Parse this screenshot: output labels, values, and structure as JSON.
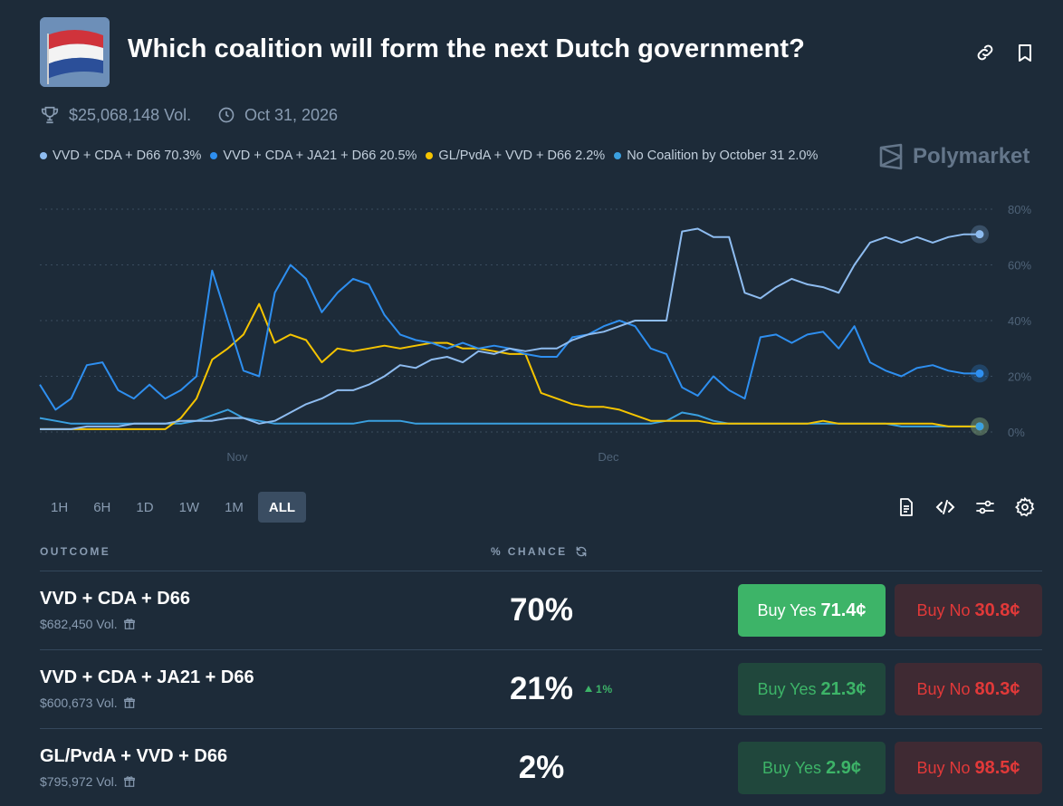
{
  "header": {
    "title": "Which coalition will form the next Dutch government?",
    "volume": "$25,068,148 Vol.",
    "date": "Oct 31, 2026",
    "brand": "Polymarket",
    "icons": [
      "trophy-icon",
      "clock-icon",
      "link-icon",
      "bookmark-icon"
    ]
  },
  "legend": [
    {
      "label": "VVD + CDA + D66 70.3%",
      "color": "#8ebcf0"
    },
    {
      "label": "VVD + CDA + JA21 + D66 20.5%",
      "color": "#2e8ff0"
    },
    {
      "label": "GL/PvdA + VVD + D66 2.2%",
      "color": "#f5c400"
    },
    {
      "label": "No Coalition by October 31 2.0%",
      "color": "#3aa0e0"
    }
  ],
  "ranges": [
    {
      "label": "1H",
      "active": false
    },
    {
      "label": "6H",
      "active": false
    },
    {
      "label": "1D",
      "active": false
    },
    {
      "label": "1W",
      "active": false
    },
    {
      "label": "1M",
      "active": false
    },
    {
      "label": "ALL",
      "active": true
    }
  ],
  "table": {
    "col_outcome": "OUTCOME",
    "col_chance": "% CHANCE",
    "rows": [
      {
        "name": "VVD + CDA + D66",
        "volume": "$682,450 Vol.",
        "chance": "70%",
        "delta": "",
        "yes_label": "Buy Yes",
        "yes_price": "71.4¢",
        "no_label": "Buy No",
        "no_price": "30.8¢"
      },
      {
        "name": "VVD + CDA + JA21 + D66",
        "volume": "$600,673 Vol.",
        "chance": "21%",
        "delta": "1%",
        "yes_label": "Buy Yes",
        "yes_price": "21.3¢",
        "no_label": "Buy No",
        "no_price": "80.3¢"
      },
      {
        "name": "GL/PvdA + VVD + D66",
        "volume": "$795,972 Vol.",
        "chance": "2%",
        "delta": "",
        "yes_label": "Buy Yes",
        "yes_price": "2.9¢",
        "no_label": "Buy No",
        "no_price": "98.5¢"
      }
    ]
  },
  "chart_data": {
    "type": "line",
    "x_ticks": [
      "Nov",
      "Dec"
    ],
    "y_ticks": [
      "80%",
      "60%",
      "40%",
      "20%",
      "0%"
    ],
    "ylim": [
      0,
      80
    ],
    "grid": true,
    "x": [
      0,
      1,
      2,
      3,
      4,
      5,
      6,
      7,
      8,
      9,
      10,
      11,
      12,
      13,
      14,
      15,
      16,
      17,
      18,
      19,
      20,
      21,
      22,
      23,
      24,
      25,
      26,
      27,
      28,
      29,
      30,
      31,
      32,
      33,
      34,
      35,
      36,
      37,
      38,
      39,
      40,
      41,
      42,
      43,
      44,
      45,
      46,
      47,
      48,
      49,
      50,
      51,
      52,
      53,
      54,
      55,
      56,
      57,
      58,
      59,
      60
    ],
    "series": [
      {
        "name": "VVD + CDA + D66",
        "color": "#8ebcf0",
        "values": [
          1,
          1,
          1,
          2,
          2,
          2,
          3,
          3,
          3,
          4,
          4,
          4,
          5,
          5,
          3,
          4,
          7,
          10,
          12,
          15,
          15,
          17,
          20,
          24,
          23,
          26,
          27,
          25,
          29,
          28,
          30,
          29,
          30,
          30,
          33,
          35,
          36,
          38,
          40,
          40,
          40,
          72,
          73,
          70,
          70,
          50,
          48,
          52,
          55,
          53,
          52,
          50,
          60,
          68,
          70,
          68,
          70,
          68,
          70,
          71,
          71
        ]
      },
      {
        "name": "VVD + CDA + JA21 + D66",
        "color": "#2e8ff0",
        "values": [
          17,
          8,
          12,
          24,
          25,
          15,
          12,
          17,
          12,
          15,
          20,
          58,
          40,
          22,
          20,
          50,
          60,
          55,
          43,
          50,
          55,
          53,
          42,
          35,
          33,
          32,
          30,
          32,
          30,
          31,
          30,
          28,
          27,
          27,
          34,
          35,
          38,
          40,
          38,
          30,
          28,
          16,
          13,
          20,
          15,
          12,
          34,
          35,
          32,
          35,
          36,
          30,
          38,
          25,
          22,
          20,
          23,
          24,
          22,
          21,
          21
        ]
      },
      {
        "name": "GL/PvdA + VVD + D66",
        "color": "#f5c400",
        "values": [
          1,
          1,
          1,
          1,
          1,
          1,
          1,
          1,
          1,
          5,
          12,
          26,
          30,
          35,
          46,
          32,
          35,
          33,
          25,
          30,
          29,
          30,
          31,
          30,
          31,
          32,
          32,
          30,
          30,
          29,
          28,
          28,
          14,
          12,
          10,
          9,
          9,
          8,
          6,
          4,
          4,
          4,
          4,
          3,
          3,
          3,
          3,
          3,
          3,
          3,
          4,
          3,
          3,
          3,
          3,
          3,
          3,
          3,
          2,
          2,
          2
        ]
      },
      {
        "name": "No Coalition by October 31",
        "color": "#3aa0e0",
        "values": [
          5,
          4,
          3,
          3,
          3,
          3,
          3,
          3,
          3,
          3,
          4,
          6,
          8,
          5,
          4,
          3,
          3,
          3,
          3,
          3,
          3,
          4,
          4,
          4,
          3,
          3,
          3,
          3,
          3,
          3,
          3,
          3,
          3,
          3,
          3,
          3,
          3,
          3,
          3,
          3,
          4,
          7,
          6,
          4,
          3,
          3,
          3,
          3,
          3,
          3,
          3,
          3,
          3,
          3,
          3,
          2,
          2,
          2,
          2,
          2,
          2
        ]
      }
    ]
  }
}
